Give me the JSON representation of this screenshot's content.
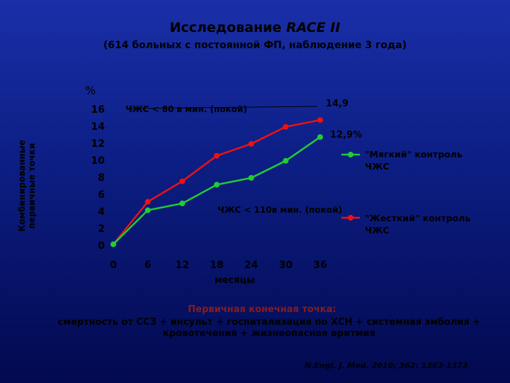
{
  "slide": {
    "title_text": "Исследование ",
    "title_italic": "RACE II",
    "subtitle": "(614 больных с постоянной ФП, наблюдение 3 года)",
    "footer_title": "Первичная конечная точка:",
    "footer_text": "смертность от ССЗ + инсульт + госпитализация по ХСН + системная эмболия + кровотечения + жизнеопасная аритмия",
    "citation": "N.Engl. J. Med. 2010; 362: 1363-1373"
  },
  "chart_data": {
    "type": "line",
    "ylabel": "Комбинированные первичные точки",
    "yunit": "%",
    "xlabel": "месяцы",
    "x": [
      0,
      6,
      12,
      18,
      24,
      30,
      36
    ],
    "xticks": [
      "0",
      "6",
      "12",
      "18",
      "24",
      "30",
      "36"
    ],
    "yticks": [
      "0",
      "2",
      "4",
      "6",
      "8",
      "10",
      "12",
      "14",
      "16"
    ],
    "xlim": [
      0,
      36
    ],
    "ylim": [
      0,
      16
    ],
    "grid": false,
    "series": [
      {
        "name": "\"Мягкий\" контроль ЧЖС",
        "color": "#22cc33",
        "values": [
          0.3,
          4.3,
          5.1,
          7.3,
          8.1,
          10.1,
          12.9
        ],
        "end_label": "12,9%",
        "annotation": "ЧЖС < 110в мин. (покой)"
      },
      {
        "name": "\"Жесткий\" контроль ЧЖС",
        "color": "#ee1111",
        "values": [
          0.3,
          5.3,
          7.7,
          10.7,
          12.1,
          14.1,
          14.9
        ],
        "end_label": "14,9",
        "annotation": "ЧЖС < 80 в мин. (покой)"
      }
    ]
  }
}
